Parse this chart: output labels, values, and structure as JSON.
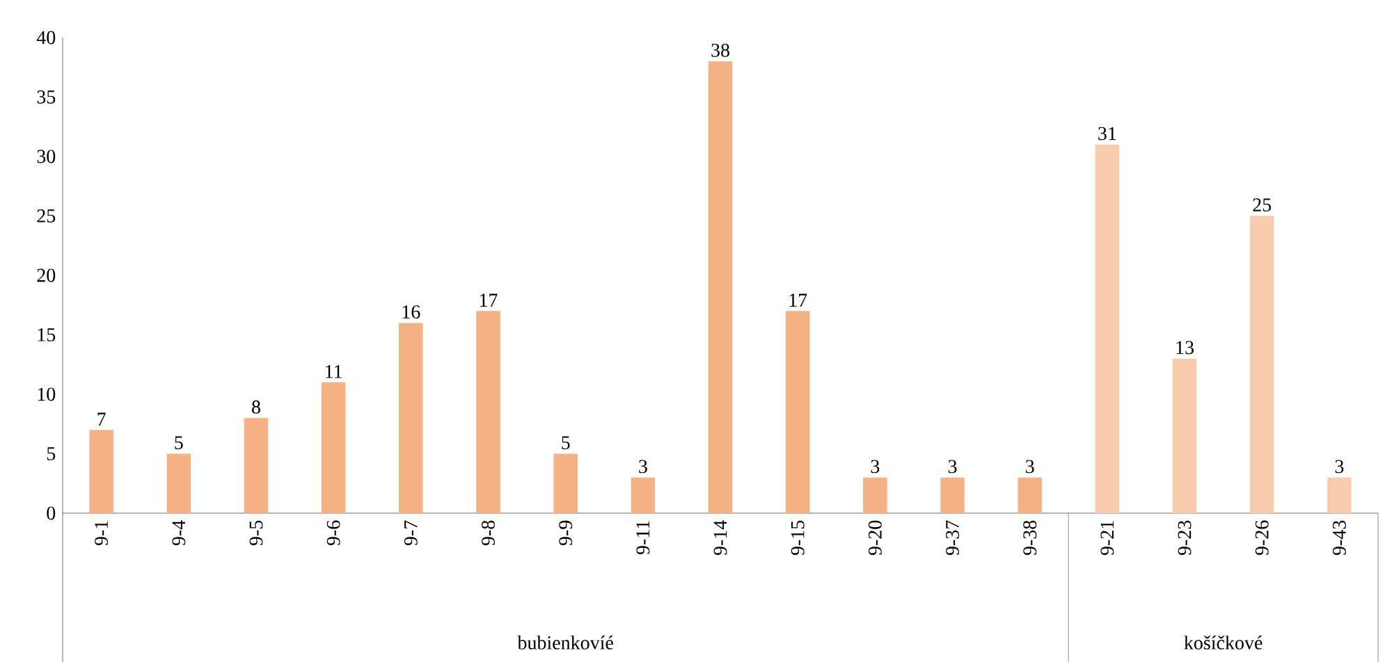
{
  "chart_data": {
    "type": "bar",
    "categories": [
      "9-1",
      "9-4",
      "9-5",
      "9-6",
      "9-7",
      "9-8",
      "9-9",
      "9-11",
      "9-14",
      "9-15",
      "9-20",
      "9-37",
      "9-38",
      "9-21",
      "9-23",
      "9-26",
      "9-43"
    ],
    "series": [
      {
        "color": "#f4b183",
        "values": [
          7,
          5,
          8,
          11,
          16,
          17,
          5,
          3,
          38,
          17,
          3,
          3,
          3,
          null,
          null,
          null,
          null
        ]
      },
      {
        "color": "#f8cbad",
        "values": [
          null,
          null,
          null,
          null,
          null,
          null,
          null,
          null,
          null,
          null,
          null,
          null,
          null,
          31,
          13,
          25,
          3
        ]
      }
    ],
    "annotations": [
      "bubienkovíé",
      "košíčkové"
    ],
    "ylim": [
      0,
      40
    ],
    "yticks": [
      0,
      5,
      10,
      15,
      20,
      25,
      30,
      35,
      40
    ],
    "data_labels": true
  }
}
